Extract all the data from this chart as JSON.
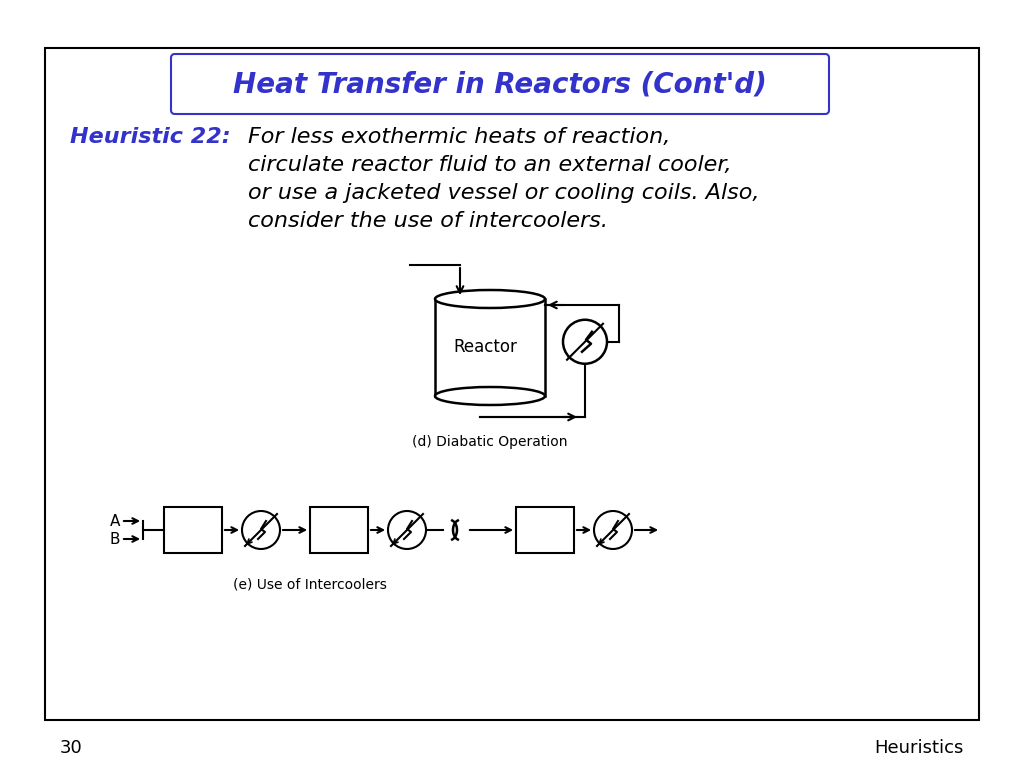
{
  "title": "Heat Transfer in Reactors (Cont'd)",
  "title_color": "#3333CC",
  "title_fontsize": 20,
  "heuristic_label": "Heuristic 22:",
  "heuristic_color": "#3333CC",
  "heuristic_fontsize": 16,
  "body_lines": [
    "For less exothermic heats of reaction,",
    "circulate reactor fluid to an external cooler,",
    "or use a jacketed vessel or cooling coils. Also,",
    "consider the use of intercoolers."
  ],
  "body_color": "#000000",
  "body_fontsize": 16,
  "diagram_d_label": "(d) Diabatic Operation",
  "diagram_e_label": "(e) Use of Intercoolers",
  "page_number": "30",
  "page_label": "Heuristics",
  "footer_fontsize": 13,
  "background_color": "#FFFFFF",
  "border_color": "#000000"
}
